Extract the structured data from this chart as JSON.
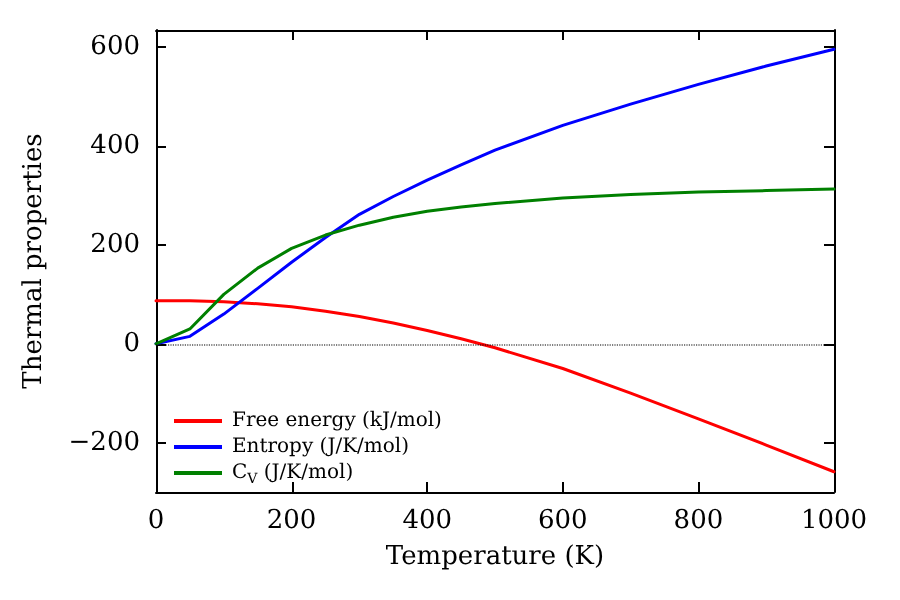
{
  "chart_data": {
    "type": "line",
    "xlabel": "Temperature (K)",
    "ylabel": "Thermal properties",
    "x": [
      0,
      50,
      100,
      150,
      200,
      250,
      300,
      350,
      400,
      450,
      500,
      600,
      700,
      800,
      900,
      1000
    ],
    "series": [
      {
        "name": "Free energy (kJ/mol)",
        "color": "#ff0000",
        "values": [
          87,
          87,
          85,
          81,
          75,
          66,
          55,
          42,
          27,
          10,
          -8,
          -50,
          -100,
          -152,
          -205,
          -259
        ]
      },
      {
        "name": "Entropy (J/K/mol)",
        "color": "#0000ff",
        "values": [
          0,
          15,
          60,
          112,
          165,
          215,
          262,
          298,
          331,
          362,
          392,
          442,
          485,
          525,
          562,
          596
        ]
      },
      {
        "name": "C$_{V}$ (J/K/mol)",
        "color": "#008000",
        "values": [
          0,
          30,
          100,
          153,
          193,
          220,
          240,
          256,
          268,
          277,
          284,
          295,
          302,
          307,
          310,
          313
        ]
      }
    ],
    "xlim": [
      0,
      1000
    ],
    "xticks": [
      0,
      200,
      400,
      600,
      800,
      1000
    ],
    "ylim": [
      -300,
      635
    ],
    "yticks": [
      -200,
      0,
      200,
      400,
      600
    ],
    "ref_lines": [
      {
        "axis": "y",
        "value": 0,
        "color": "#000000",
        "line_style": "dotted"
      }
    ],
    "grid": false,
    "legend": "bottom left",
    "line_style": "solid",
    "marker": "none"
  }
}
